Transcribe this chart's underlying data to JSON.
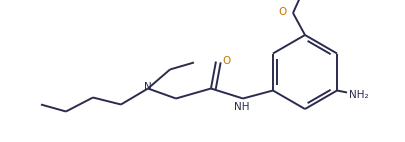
{
  "bg_color": "#ffffff",
  "line_color": "#2b2b4e",
  "O_color": "#c87800",
  "N_color": "#2b2b4e",
  "font_size": 7.5,
  "line_width": 1.4,
  "figsize": [
    4.06,
    1.42
  ],
  "dpi": 100,
  "xlim": [
    0.0,
    4.06
  ],
  "ylim": [
    0.0,
    1.42
  ]
}
